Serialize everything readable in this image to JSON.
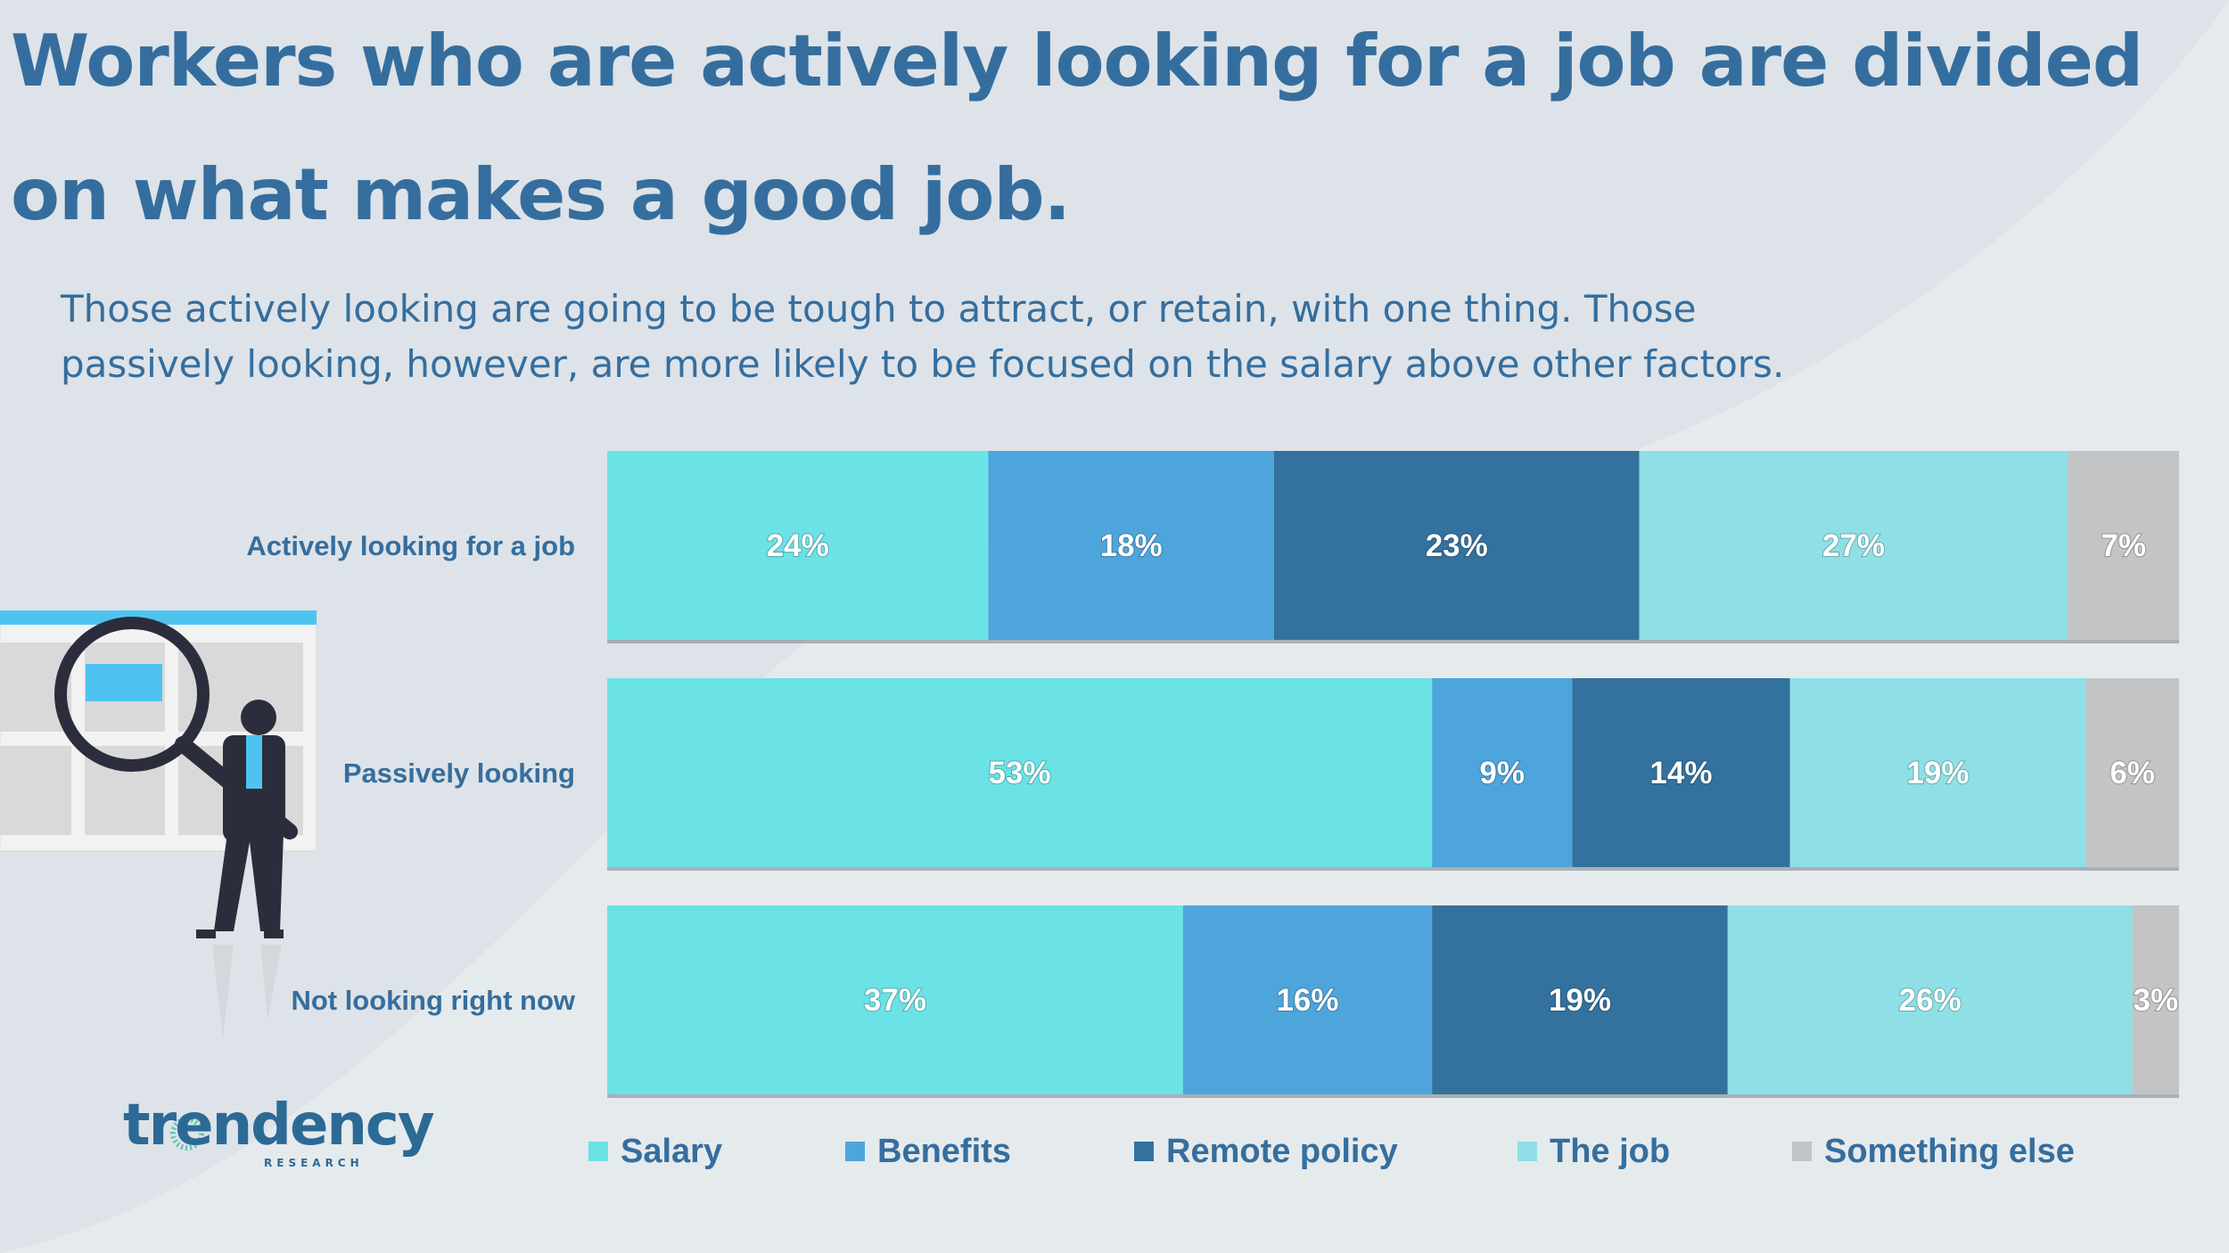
{
  "title": "Workers who are actively looking for a job are divided on what makes a good job.",
  "subtitle": "Those actively looking are going to be tough to attract, or retain, with one thing. Those passively looking, however, are more likely to be focused on the salary above other factors.",
  "logo": {
    "word": "trendency",
    "sub": "RESEARCH"
  },
  "colors": {
    "salary": "#6ae2e6",
    "benefits": "#4ea5db",
    "remote": "#33729e",
    "thejob": "#8ee0e6",
    "else": "#c2c4c6",
    "text": "#356e9e"
  },
  "chart_data": {
    "type": "bar",
    "orientation": "horizontal",
    "stacked": true,
    "categories": [
      "Actively looking for a job",
      "Passively looking",
      "Not looking right now"
    ],
    "series": [
      {
        "name": "Salary",
        "key": "salary",
        "values": [
          24,
          53,
          37
        ]
      },
      {
        "name": "Benefits",
        "key": "benefits",
        "values": [
          18,
          9,
          16
        ]
      },
      {
        "name": "Remote policy",
        "key": "remote",
        "values": [
          23,
          14,
          19
        ]
      },
      {
        "name": "The job",
        "key": "thejob",
        "values": [
          27,
          19,
          26
        ]
      },
      {
        "name": "Something else",
        "key": "else",
        "values": [
          7,
          6,
          3
        ]
      }
    ],
    "value_suffix": "%",
    "legend_position": "bottom"
  }
}
